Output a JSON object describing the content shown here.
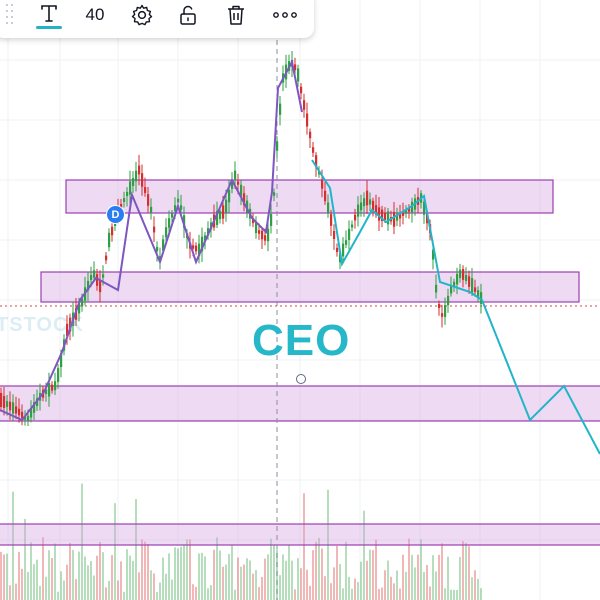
{
  "toolbar": {
    "text_tool_icon": "text-T-icon",
    "font_size": "40",
    "settings_icon": "gear-icon",
    "lock_icon": "unlock-icon",
    "delete_icon": "trash-icon",
    "more_icon": "more-horizontal-icon"
  },
  "annotation": {
    "text": "CEO",
    "color": "#26b7c9"
  },
  "badge": {
    "label": "D",
    "color": "#2a7ef2"
  },
  "watermark": {
    "text": "TSTOCK"
  },
  "colors": {
    "up_candle": "#2ea043",
    "down_candle": "#d62f2f",
    "zone_fill": "rgba(214,166,226,0.42)",
    "zone_border": "#9b3fb0",
    "path_line": "#7e56c2",
    "projection_line": "#22b5c9",
    "current_price_line": "#d64545"
  }
}
